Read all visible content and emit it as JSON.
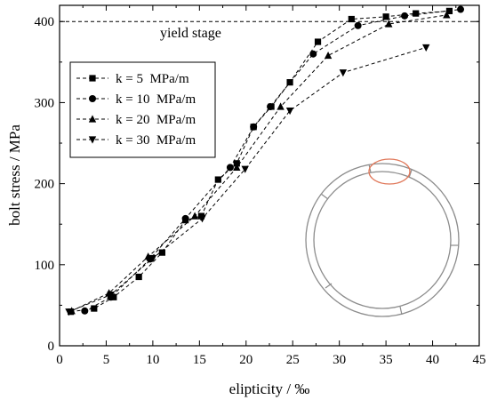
{
  "chart_data": {
    "type": "line",
    "xlabel": "elipticity / ‰",
    "ylabel": "bolt stress / MPa",
    "xlim": [
      0,
      45
    ],
    "ylim": [
      0,
      420
    ],
    "xticks": [
      0,
      5,
      10,
      15,
      20,
      25,
      30,
      35,
      40,
      45
    ],
    "yticks": [
      0,
      100,
      200,
      300,
      400
    ],
    "grid": false,
    "legend_position": "top-left",
    "reference_line": {
      "y": 400,
      "label": "yield stage"
    },
    "series": [
      {
        "name": "k = 5  MPa/m",
        "marker": "square",
        "points": [
          [
            1.2,
            42
          ],
          [
            3.7,
            46
          ],
          [
            5.8,
            60
          ],
          [
            8.5,
            85
          ],
          [
            11.0,
            115
          ],
          [
            13.5,
            155
          ],
          [
            15.2,
            160
          ],
          [
            17.0,
            205
          ],
          [
            19.0,
            225
          ],
          [
            20.8,
            270
          ],
          [
            22.7,
            295
          ],
          [
            24.7,
            325
          ],
          [
            27.7,
            375
          ],
          [
            31.3,
            403
          ],
          [
            35.0,
            406
          ],
          [
            38.2,
            410
          ],
          [
            41.8,
            413
          ]
        ]
      },
      {
        "name": "k = 10  MPa/m",
        "marker": "circle",
        "points": [
          [
            2.7,
            43
          ],
          [
            5.5,
            60
          ],
          [
            9.7,
            107
          ],
          [
            13.5,
            157
          ],
          [
            18.3,
            220
          ],
          [
            20.8,
            270
          ],
          [
            22.6,
            295
          ],
          [
            27.2,
            360
          ],
          [
            32.0,
            395
          ],
          [
            37.0,
            407
          ],
          [
            43.0,
            415
          ]
        ]
      },
      {
        "name": "k = 20  MPa/m",
        "marker": "triangle-up",
        "points": [
          [
            1.3,
            43
          ],
          [
            5.3,
            65
          ],
          [
            9.5,
            110
          ],
          [
            14.5,
            160
          ],
          [
            19.0,
            220
          ],
          [
            23.7,
            295
          ],
          [
            28.8,
            358
          ],
          [
            35.3,
            397
          ],
          [
            41.5,
            408
          ]
        ]
      },
      {
        "name": "k = 30  MPa/m",
        "marker": "triangle-down",
        "points": [
          [
            1.0,
            42
          ],
          [
            5.5,
            63
          ],
          [
            10.0,
            108
          ],
          [
            15.3,
            157
          ],
          [
            19.9,
            218
          ],
          [
            24.7,
            290
          ],
          [
            30.4,
            337
          ],
          [
            39.3,
            368
          ]
        ]
      }
    ]
  }
}
